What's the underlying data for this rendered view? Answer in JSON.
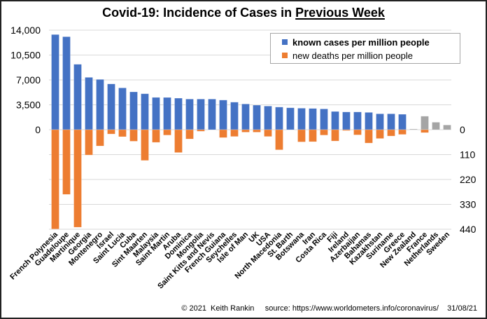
{
  "chart_data": {
    "type": "bar",
    "title_prefix": "Covid-19: Incidence of Cases in ",
    "title_underlined": "Previous Week",
    "categories": [
      "French Polynesia",
      "Guadeloupe",
      "Martinique",
      "Georgia",
      "Montenegro",
      "Israel",
      "Saint Lucia",
      "Cuba",
      "Sint Maarten",
      "Malaysia",
      "Saint Martin",
      "Aruba",
      "Dominica",
      "Mongolia",
      "Saint Kitts and Nevis",
      "French Guiana",
      "Seychelles",
      "Isle of Man",
      "UK",
      "USA",
      "North Macedonia",
      "St. Barth",
      "Botswana",
      "Iran",
      "Costa Rica",
      "Fiji",
      "Ireland",
      "Azerbaijan",
      "Bahamas",
      "Kazakhstan",
      "Suriname",
      "Greece",
      "New Zealand",
      "France",
      "Netherlands",
      "Sweden"
    ],
    "series": [
      {
        "name": "known cases per million people",
        "axis": "left",
        "direction": "up",
        "color": "#4472c4",
        "values": [
          13380,
          13080,
          9200,
          7360,
          7070,
          6440,
          5880,
          5320,
          5060,
          4540,
          4535,
          4437,
          4308,
          4308,
          4308,
          4170,
          3875,
          3618,
          3451,
          3323,
          3185,
          3086,
          3024,
          2990,
          2925,
          2563,
          2497,
          2497,
          2432,
          2235,
          2235,
          2170,
          100,
          1900,
          1050,
          660
        ]
      },
      {
        "name": "new deaths per million people",
        "axis": "right",
        "direction": "down",
        "color": "#ed7d31",
        "values": [
          439,
          286,
          431,
          112,
          72,
          19,
          31,
          51,
          136,
          56,
          24,
          101,
          41,
          7,
          0,
          35,
          30,
          11,
          11,
          30,
          89,
          0,
          54,
          53,
          24,
          50,
          4,
          23,
          59,
          39,
          28,
          21,
          0,
          13,
          0,
          0
        ]
      }
    ],
    "highlight_gray_categories": [
      "New Zealand",
      "France",
      "Netherlands",
      "Sweden"
    ],
    "gray_color": "#a5a5a5",
    "left_axis": {
      "ylim": [
        0,
        14000
      ],
      "ticks": [
        "14,000",
        "10,500",
        "7,000",
        "3,500",
        "0"
      ]
    },
    "right_axis": {
      "ylim": [
        0,
        440
      ],
      "ticks": [
        "0",
        "110",
        "220",
        "330",
        "440"
      ],
      "inverted": true
    },
    "xlabel": "",
    "ylabel": "",
    "grid": true,
    "legend_position": "top-right"
  },
  "legend": [
    {
      "label": "known cases per million people",
      "color": "#4472c4",
      "bold": true
    },
    {
      "label": "new deaths per million people",
      "color": "#ed7d31",
      "bold": false
    }
  ],
  "footer": {
    "copyright": "© 2021  Keith Rankin",
    "source": "source: https://www.worldometers.info/coronavirus/",
    "date": "31/08/21"
  }
}
